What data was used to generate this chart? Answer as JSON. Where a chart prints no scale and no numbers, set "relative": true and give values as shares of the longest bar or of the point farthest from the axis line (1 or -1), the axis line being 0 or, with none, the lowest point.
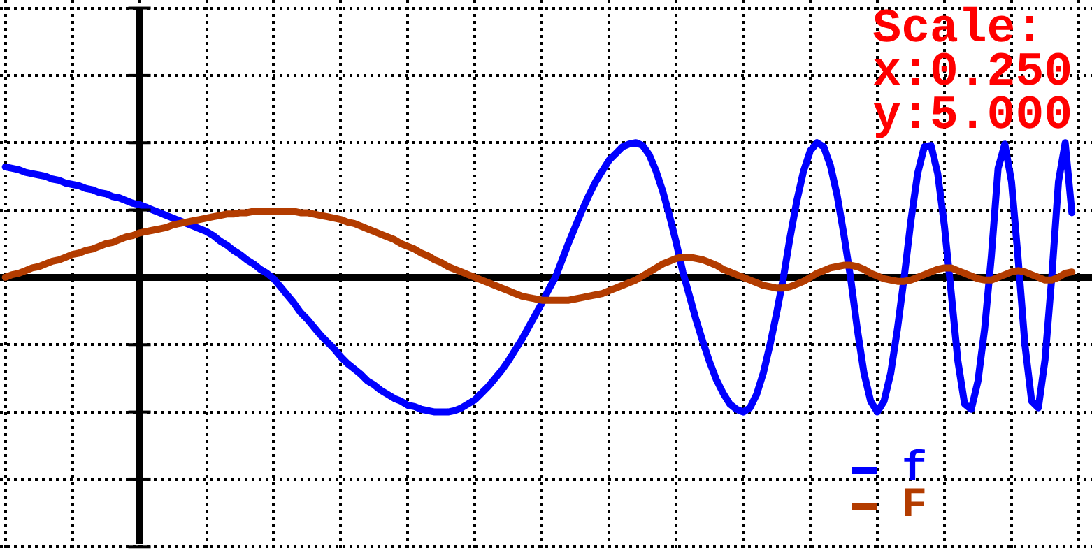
{
  "chart_data": {
    "type": "line",
    "relative": true,
    "annotations": [
      "Scale:",
      "x:0.250",
      "y:5.000"
    ],
    "categories": [
      null,
      null,
      null,
      null,
      null,
      null,
      null,
      null,
      null,
      null,
      null,
      null,
      null,
      null,
      null,
      null,
      null,
      null,
      null,
      null,
      null,
      null,
      null,
      null,
      null,
      null,
      null,
      null,
      null,
      null,
      null,
      null,
      null,
      null,
      null,
      null,
      null,
      null,
      null,
      null,
      null,
      null,
      null,
      null,
      null,
      null,
      null,
      null,
      null,
      null,
      null,
      null,
      null,
      null,
      null,
      null,
      null,
      null,
      null,
      null,
      null,
      null,
      null,
      null,
      null,
      null,
      null,
      null,
      null,
      null,
      null,
      null,
      null,
      null,
      null,
      null,
      null,
      null,
      null,
      null,
      null,
      null,
      null,
      null,
      null,
      null,
      null,
      null,
      null,
      null,
      null,
      null,
      null,
      null,
      null,
      null,
      null,
      null,
      null,
      null,
      null,
      null,
      null,
      null,
      null,
      null,
      null,
      null,
      null,
      null,
      null,
      null,
      null,
      null,
      null,
      null,
      null,
      null,
      null,
      null,
      null,
      null,
      null,
      null,
      null,
      null,
      null,
      null,
      null,
      null,
      null,
      null,
      null,
      null,
      null,
      null,
      null,
      null,
      null,
      null,
      null,
      null,
      null,
      null,
      null,
      null,
      null,
      null,
      null,
      null,
      null,
      null,
      null,
      null,
      null,
      null,
      null,
      null,
      null,
      null
    ],
    "tick_labels": false,
    "grid": true,
    "legend": "bottom right",
    "marker": "none",
    "line_style": "solid",
    "series": [
      {
        "name": "f",
        "color": "#0000ff",
        "values": [
          0.82,
          0.81,
          0.8,
          0.78,
          0.77,
          0.76,
          0.75,
          0.73,
          0.72,
          0.7,
          0.69,
          0.68,
          0.66,
          0.65,
          0.63,
          0.62,
          0.6,
          0.59,
          0.57,
          0.55,
          0.54,
          0.52,
          0.5,
          0.48,
          0.46,
          0.44,
          0.42,
          0.4,
          0.38,
          0.36,
          0.34,
          0.31,
          0.27,
          0.24,
          0.2,
          0.17,
          0.13,
          0.1,
          0.06,
          0.03,
          -0.01,
          -0.07,
          -0.13,
          -0.19,
          -0.26,
          -0.31,
          -0.37,
          -0.43,
          -0.48,
          -0.53,
          -0.59,
          -0.64,
          -0.68,
          -0.72,
          -0.77,
          -0.8,
          -0.84,
          -0.87,
          -0.9,
          -0.92,
          -0.95,
          -0.96,
          -0.98,
          -0.99,
          -1,
          -1,
          -1,
          -0.99,
          -0.97,
          -0.94,
          -0.91,
          -0.86,
          -0.81,
          -0.75,
          -0.69,
          -0.62,
          -0.54,
          -0.46,
          -0.37,
          -0.28,
          -0.19,
          -0.09,
          0,
          0.13,
          0.26,
          0.38,
          0.5,
          0.61,
          0.71,
          0.79,
          0.87,
          0.92,
          0.97,
          0.99,
          1,
          0.98,
          0.91,
          0.79,
          0.64,
          0.46,
          0.26,
          0.04,
          -0.14,
          -0.32,
          -0.48,
          -0.63,
          -0.76,
          -0.86,
          -0.94,
          -0.98,
          -1,
          -0.97,
          -0.87,
          -0.71,
          -0.5,
          -0.26,
          0,
          0.3,
          0.57,
          0.79,
          0.94,
          1,
          0.97,
          0.83,
          0.61,
          0.32,
          0,
          -0.38,
          -0.71,
          -0.92,
          -1,
          -0.92,
          -0.71,
          -0.38,
          0,
          0.42,
          0.77,
          0.97,
          0.98,
          0.77,
          0.38,
          -0.11,
          -0.62,
          -0.94,
          -0.98,
          -0.77,
          -0.38,
          0.16,
          0.81,
          0.99,
          0.71,
          0.13,
          -0.5,
          -0.92,
          -0.97,
          -0.61,
          0,
          0.71,
          1,
          0.48
        ]
      },
      {
        "name": "F",
        "color": "#b33c00",
        "values": [
          0,
          0.02,
          0.03,
          0.05,
          0.07,
          0.08,
          0.1,
          0.12,
          0.13,
          0.15,
          0.17,
          0.18,
          0.2,
          0.21,
          0.23,
          0.25,
          0.26,
          0.28,
          0.3,
          0.31,
          0.33,
          0.34,
          0.35,
          0.36,
          0.37,
          0.39,
          0.4,
          0.41,
          0.42,
          0.43,
          0.44,
          0.45,
          0.46,
          0.47,
          0.47,
          0.48,
          0.48,
          0.49,
          0.49,
          0.49,
          0.49,
          0.49,
          0.49,
          0.49,
          0.48,
          0.48,
          0.47,
          0.46,
          0.45,
          0.44,
          0.43,
          0.41,
          0.4,
          0.38,
          0.36,
          0.34,
          0.32,
          0.3,
          0.28,
          0.25,
          0.23,
          0.21,
          0.18,
          0.16,
          0.13,
          0.11,
          0.08,
          0.06,
          0.04,
          0.02,
          0,
          -0.02,
          -0.04,
          -0.06,
          -0.08,
          -0.1,
          -0.12,
          -0.14,
          -0.15,
          -0.16,
          -0.17,
          -0.17,
          -0.17,
          -0.17,
          -0.17,
          -0.16,
          -0.15,
          -0.14,
          -0.13,
          -0.12,
          -0.1,
          -0.08,
          -0.06,
          -0.04,
          -0.02,
          0.01,
          0.04,
          0.07,
          0.1,
          0.12,
          0.14,
          0.15,
          0.15,
          0.14,
          0.13,
          0.11,
          0.09,
          0.06,
          0.04,
          0.02,
          0,
          -0.02,
          -0.04,
          -0.06,
          -0.07,
          -0.08,
          -0.08,
          -0.07,
          -0.05,
          -0.03,
          0,
          0.03,
          0.05,
          0.07,
          0.08,
          0.09,
          0.09,
          0.08,
          0.06,
          0.03,
          0.01,
          -0.01,
          -0.02,
          -0.03,
          -0.03,
          -0.02,
          0,
          0.02,
          0.04,
          0.06,
          0.07,
          0.07,
          0.05,
          0.03,
          0.01,
          -0.01,
          -0.02,
          -0.02,
          0,
          0.02,
          0.04,
          0.05,
          0.04,
          0.02,
          0,
          -0.02,
          -0.02,
          0,
          0.03,
          0.04
        ]
      }
    ]
  }
}
